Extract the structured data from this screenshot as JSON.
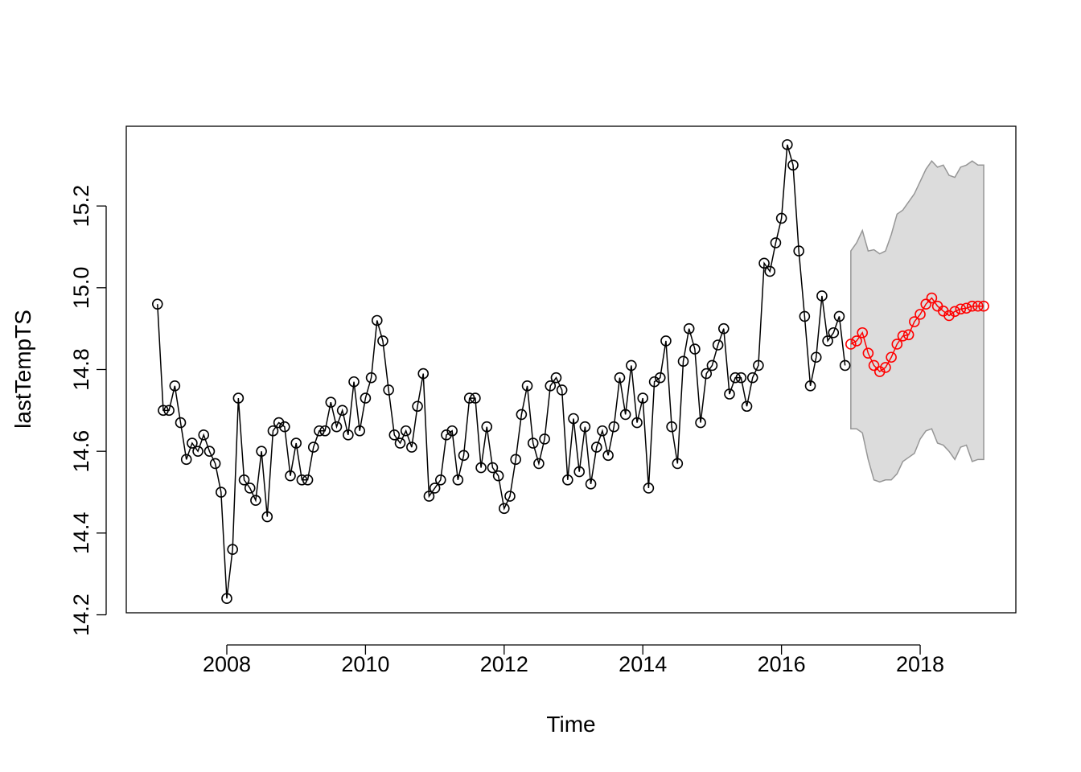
{
  "chart_data": {
    "type": "line",
    "xlabel": "Time",
    "ylabel": "lastTempTS",
    "xlim": [
      2006.55,
      2019.38
    ],
    "ylim": [
      14.205,
      15.395
    ],
    "x_ticks": [
      2008,
      2010,
      2012,
      2014,
      2016,
      2018
    ],
    "y_ticks": [
      14.2,
      14.4,
      14.6,
      14.8,
      15.0,
      15.2
    ],
    "x_tick_labels": [
      "2008",
      "2010",
      "2012",
      "2014",
      "2016",
      "2018"
    ],
    "y_tick_labels": [
      "14.2",
      "14.4",
      "14.6",
      "14.8",
      "15.0",
      "15.2"
    ],
    "grid": false,
    "legend": "none",
    "colors": {
      "observed": "#000000",
      "forecast": "#ff0000",
      "interval_fill": "#dcdcdc",
      "interval_border": "#969696"
    },
    "series": [
      {
        "role": "observed",
        "start": 2007.0,
        "frequency": 12,
        "values": [
          14.96,
          14.7,
          14.7,
          14.76,
          14.67,
          14.58,
          14.62,
          14.6,
          14.64,
          14.6,
          14.57,
          14.5,
          14.24,
          14.36,
          14.73,
          14.53,
          14.51,
          14.48,
          14.6,
          14.44,
          14.65,
          14.67,
          14.66,
          14.54,
          14.62,
          14.53,
          14.53,
          14.61,
          14.65,
          14.65,
          14.72,
          14.66,
          14.7,
          14.64,
          14.77,
          14.65,
          14.73,
          14.78,
          14.92,
          14.87,
          14.75,
          14.64,
          14.62,
          14.65,
          14.61,
          14.71,
          14.79,
          14.49,
          14.51,
          14.53,
          14.64,
          14.65,
          14.53,
          14.59,
          14.73,
          14.73,
          14.56,
          14.66,
          14.56,
          14.54,
          14.46,
          14.49,
          14.58,
          14.69,
          14.76,
          14.62,
          14.57,
          14.63,
          14.76,
          14.78,
          14.75,
          14.53,
          14.68,
          14.55,
          14.66,
          14.52,
          14.61,
          14.65,
          14.59,
          14.66,
          14.78,
          14.69,
          14.81,
          14.67,
          14.73,
          14.51,
          14.77,
          14.78,
          14.87,
          14.66,
          14.57,
          14.82,
          14.9,
          14.85,
          14.67,
          14.79,
          14.81,
          14.86,
          14.9,
          14.74,
          14.78,
          14.78,
          14.71,
          14.78,
          14.81,
          15.06,
          15.04,
          15.11,
          15.17,
          15.35,
          15.3,
          15.09,
          14.93,
          14.76,
          14.83,
          14.98,
          14.87,
          14.89,
          14.93,
          14.81
        ]
      },
      {
        "role": "forecast",
        "start": 2017.0,
        "frequency": 12,
        "values": [
          14.862,
          14.87,
          14.89,
          14.84,
          14.81,
          14.795,
          14.805,
          14.83,
          14.862,
          14.882,
          14.885,
          14.917,
          14.935,
          14.96,
          14.975,
          14.955,
          14.943,
          14.932,
          14.942,
          14.948,
          14.95,
          14.955,
          14.955,
          14.955
        ]
      },
      {
        "role": "interval_upper",
        "start": 2017.0,
        "frequency": 12,
        "values": [
          15.09,
          15.11,
          15.14,
          15.09,
          15.093,
          15.083,
          15.09,
          15.13,
          15.18,
          15.19,
          15.21,
          15.23,
          15.26,
          15.29,
          15.31,
          15.295,
          15.3,
          15.275,
          15.27,
          15.295,
          15.3,
          15.31,
          15.3,
          15.3
        ]
      },
      {
        "role": "interval_lower",
        "start": 2017.0,
        "frequency": 12,
        "values": [
          14.655,
          14.655,
          14.645,
          14.58,
          14.53,
          14.525,
          14.53,
          14.53,
          14.545,
          14.575,
          14.585,
          14.595,
          14.63,
          14.65,
          14.655,
          14.62,
          14.615,
          14.6,
          14.58,
          14.61,
          14.615,
          14.575,
          14.58,
          14.58
        ]
      }
    ]
  }
}
